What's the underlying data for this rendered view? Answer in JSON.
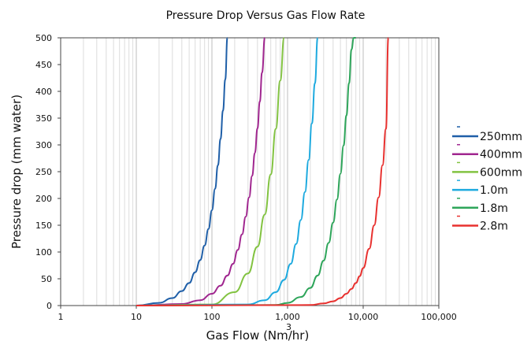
{
  "chart_data": {
    "type": "line",
    "title": "Pressure Drop Versus Gas Flow Rate",
    "xlabel": "Gas Flow (Nm/hr)",
    "xlabel_superscript": "3",
    "ylabel": "Pressure drop (mm water)",
    "x_scale": "log",
    "xlim": [
      1,
      100000
    ],
    "ylim": [
      0,
      500
    ],
    "x_ticks": [
      1,
      10,
      100,
      1000,
      10000,
      100000
    ],
    "x_tick_labels": [
      "1",
      "10",
      "100",
      "1,000",
      "10,000",
      "100,000"
    ],
    "y_ticks": [
      0,
      50,
      100,
      150,
      200,
      250,
      300,
      350,
      400,
      450,
      500
    ],
    "grid": "vertical",
    "legend_position": "right",
    "series": [
      {
        "name": "250mm",
        "color": "#1f5fa8",
        "x": [
          10,
          20,
          30,
          40,
          50,
          60,
          70,
          80,
          90,
          100,
          110,
          120,
          130,
          140,
          150,
          160
        ],
        "y": [
          0,
          5,
          14,
          27,
          42,
          62,
          85,
          112,
          143,
          178,
          218,
          262,
          311,
          364,
          422,
          500
        ]
      },
      {
        "name": "400mm",
        "color": "#a0268f",
        "x": [
          10,
          40,
          70,
          100,
          130,
          160,
          190,
          220,
          250,
          280,
          310,
          340,
          370,
          400,
          430,
          460,
          500
        ],
        "y": [
          0,
          3,
          10,
          22,
          37,
          56,
          78,
          104,
          133,
          166,
          202,
          242,
          285,
          331,
          381,
          435,
          500
        ]
      },
      {
        "name": "600mm",
        "color": "#82c341",
        "x": [
          10,
          100,
          200,
          300,
          400,
          500,
          600,
          700,
          800,
          900
        ],
        "y": [
          0,
          2,
          25,
          60,
          110,
          170,
          245,
          330,
          420,
          500
        ]
      },
      {
        "name": "1.0m",
        "color": "#1eaadf",
        "x": [
          10,
          300,
          500,
          700,
          900,
          1100,
          1300,
          1500,
          1700,
          1900,
          2100,
          2300,
          2500
        ],
        "y": [
          0,
          2,
          10,
          25,
          48,
          78,
          115,
          160,
          212,
          272,
          340,
          415,
          500
        ]
      },
      {
        "name": "1.8m",
        "color": "#2ea55a",
        "x": [
          10,
          700,
          1000,
          1500,
          2000,
          2500,
          3000,
          3500,
          4000,
          4500,
          5000,
          5500,
          6000,
          6500,
          7000,
          7500,
          8000
        ],
        "y": [
          0,
          1,
          5,
          16,
          33,
          56,
          84,
          117,
          155,
          198,
          246,
          299,
          355,
          415,
          478,
          500,
          500
        ]
      },
      {
        "name": "2.8m",
        "color": "#e8312f",
        "x": [
          10,
          2000,
          3000,
          4000,
          5000,
          6000,
          7000,
          8000,
          9000,
          10000,
          12000,
          14000,
          16000,
          18000,
          20000,
          21500
        ],
        "y": [
          0,
          1,
          4,
          8,
          14,
          22,
          31,
          42,
          55,
          70,
          106,
          150,
          202,
          262,
          330,
          500
        ]
      }
    ]
  }
}
